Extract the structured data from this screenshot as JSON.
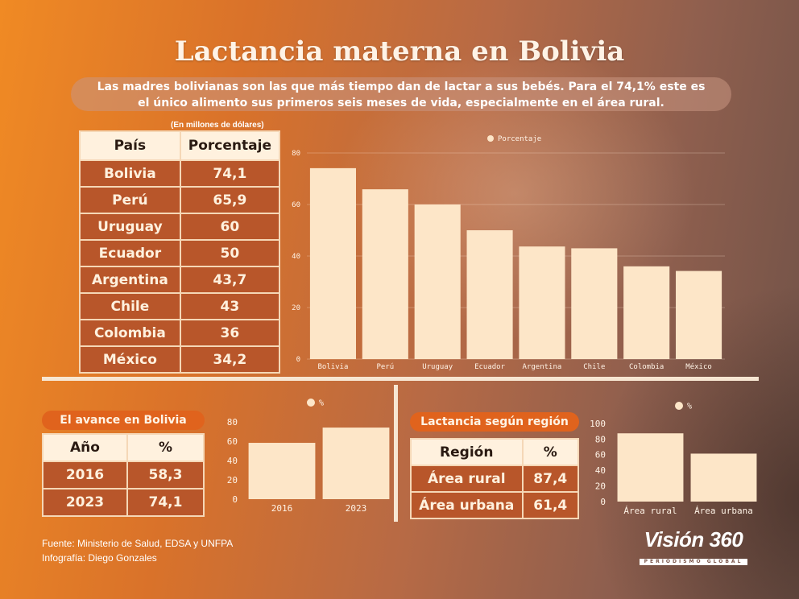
{
  "title": "Lactancia materna en Bolivia",
  "subtitle_line1": "Las madres bolivianas son las que más tiempo dan de lactar a sus bebés. Para el 74,1% este es",
  "subtitle_line2": "el único alimento sus primeros seis meses de vida, especialmente en el área rural.",
  "note": "(En millones de dólares)",
  "main_table": {
    "headers": [
      "País",
      "Porcentaje"
    ],
    "rows": [
      [
        "Bolivia",
        "74,1"
      ],
      [
        "Perú",
        "65,9"
      ],
      [
        "Uruguay",
        "60"
      ],
      [
        "Ecuador",
        "50"
      ],
      [
        "Argentina",
        "43,7"
      ],
      [
        "Chile",
        "43"
      ],
      [
        "Colombia",
        "36"
      ],
      [
        "México",
        "34,2"
      ]
    ]
  },
  "avance": {
    "label": "El avance en Bolivia",
    "headers": [
      "Año",
      "%"
    ],
    "rows": [
      [
        "2016",
        "58,3"
      ],
      [
        "2023",
        "74,1"
      ]
    ]
  },
  "region": {
    "label": "Lactancia según región",
    "headers": [
      "Región",
      "%"
    ],
    "rows": [
      [
        "Área rural",
        "87,4"
      ],
      [
        "Área urbana",
        "61,4"
      ]
    ]
  },
  "footer_source": "Fuente: Ministerio de Salud, EDSA y UNFPA",
  "footer_credit": "Infografía: Diego Gonzales",
  "logo_main": "Visión 360",
  "logo_sub": "PERIODISMO GLOBAL",
  "colors": {
    "bar": "#fde6c8",
    "accent": "#e0631d",
    "cell": "#b8562a",
    "header_cell": "#fff1de"
  },
  "chart_data": [
    {
      "type": "bar",
      "categories": [
        "Bolivia",
        "Perú",
        "Uruguay",
        "Ecuador",
        "Argentina",
        "Chile",
        "Colombia",
        "México"
      ],
      "series": [
        {
          "name": "Porcentaje",
          "values": [
            74.1,
            65.9,
            60,
            50,
            43.7,
            43,
            36,
            34.2
          ]
        }
      ],
      "ylim": [
        0,
        80
      ],
      "yticks": [
        0,
        20,
        40,
        60,
        80
      ],
      "legend": "top-center",
      "grid": true
    },
    {
      "type": "bar",
      "categories": [
        "2016",
        "2023"
      ],
      "series": [
        {
          "name": "%",
          "values": [
            58.3,
            74.1
          ]
        }
      ],
      "ylim": [
        0,
        80
      ],
      "yticks": [
        0,
        20,
        40,
        60,
        80
      ],
      "legend": "top-center",
      "grid": false
    },
    {
      "type": "bar",
      "categories": [
        "Área rural",
        "Área urbana"
      ],
      "series": [
        {
          "name": "%",
          "values": [
            87.4,
            61.4
          ]
        }
      ],
      "ylim": [
        0,
        100
      ],
      "yticks": [
        0,
        20,
        40,
        60,
        80,
        100
      ],
      "legend": "top-center",
      "grid": false
    }
  ]
}
